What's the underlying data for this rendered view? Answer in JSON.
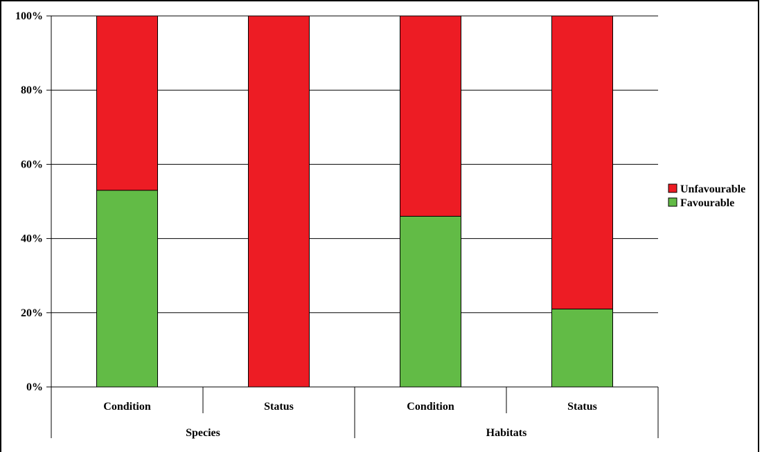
{
  "chart_data": {
    "type": "bar",
    "stacked": true,
    "percent": true,
    "categories": [
      "Condition",
      "Status",
      "Condition",
      "Status"
    ],
    "groups": [
      {
        "label": "Species",
        "categories": [
          "Condition",
          "Status"
        ]
      },
      {
        "label": "Habitats",
        "categories": [
          "Condition",
          "Status"
        ]
      }
    ],
    "series": [
      {
        "name": "Favourable",
        "color": "#62bb46",
        "values": [
          53,
          0,
          46,
          21
        ]
      },
      {
        "name": "Unfavourable",
        "color": "#ed1c24",
        "values": [
          47,
          100,
          54,
          79
        ]
      }
    ],
    "ylim": [
      0,
      100
    ],
    "yticks": [
      "0%",
      "20%",
      "40%",
      "60%",
      "80%",
      "100%"
    ],
    "ytick_values": [
      0,
      20,
      40,
      60,
      80,
      100
    ],
    "grid": true,
    "legend_placement": "right",
    "legend": [
      "Unfavourable",
      "Favourable"
    ]
  }
}
